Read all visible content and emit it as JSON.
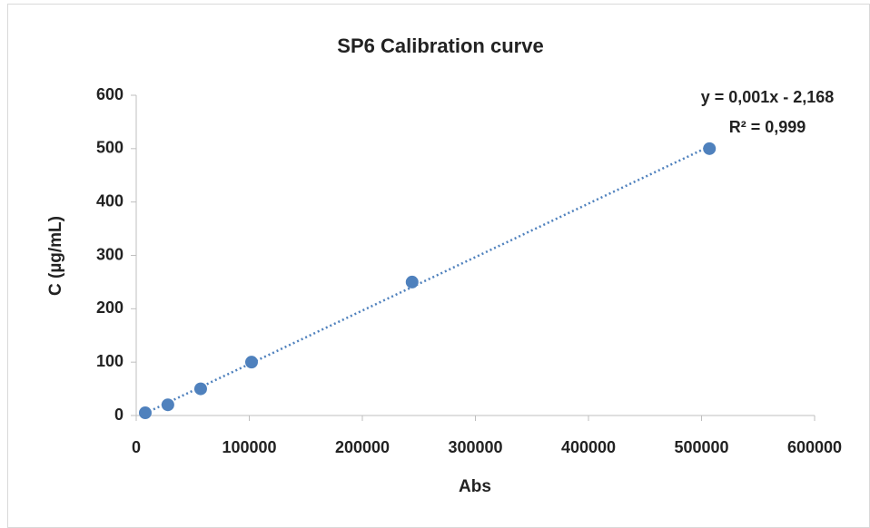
{
  "chart_data": {
    "type": "scatter",
    "title": "SP6 Calibration curve",
    "x_label": "Abs",
    "y_label": "C (µg/mL)",
    "series": [
      {
        "name": "SP6",
        "color": "#4f81bd",
        "x": [
          8000,
          28000,
          57000,
          102000,
          244000,
          507000
        ],
        "values": [
          5,
          20,
          50,
          100,
          250,
          500
        ]
      }
    ],
    "xlim": [
      0,
      600000
    ],
    "xticks": [
      0,
      100000,
      200000,
      300000,
      400000,
      500000,
      600000
    ],
    "ylim": [
      0,
      600
    ],
    "yticks": [
      0,
      100,
      200,
      300,
      400,
      500,
      600
    ],
    "grid": false,
    "trendline": {
      "kind": "linear",
      "style": "dotted",
      "equation": "y = 0,001x - 2,168",
      "r_squared": "R² = 0,999"
    }
  }
}
